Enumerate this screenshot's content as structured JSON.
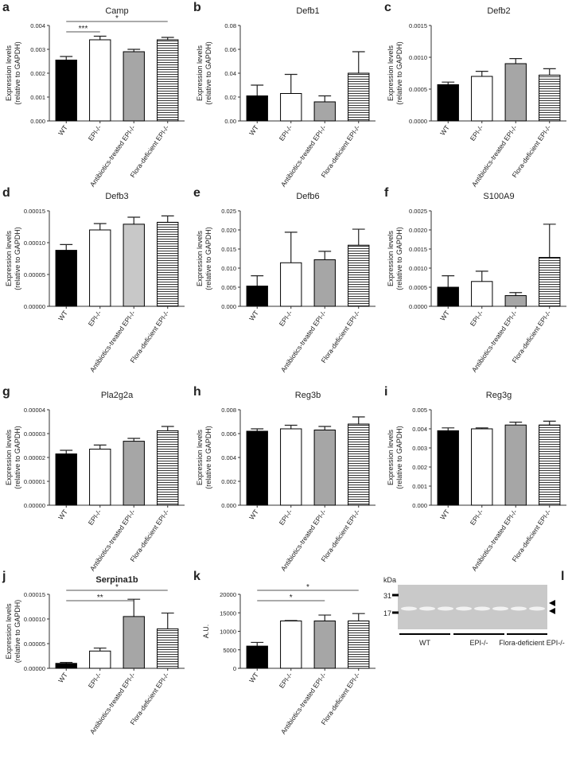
{
  "chart_data": [
    {
      "type": "bar",
      "panel": "a",
      "title": "Camp",
      "ylabel": [
        "Expression levels",
        "(relative to GAPDH)"
      ],
      "categories": [
        "WT",
        "EPI-/-",
        "Antibiotics-treated EPI-/-",
        "Flora-deficient EPI-/-"
      ],
      "values": [
        0.00255,
        0.0034,
        0.0029,
        0.0034
      ],
      "errors": [
        0.00015,
        0.00015,
        0.0001,
        0.0001
      ],
      "colors": [
        "#000000",
        "#ffffff",
        "#a6a6a6",
        "#ffffff"
      ],
      "patterns": [
        "solid",
        "solid",
        "solid",
        "horizontal-lines"
      ],
      "ylim": [
        0,
        0.004
      ],
      "yticks": [
        {
          "value": 0,
          "label": "0.000"
        },
        0.001,
        0.002,
        0.003,
        0.004
      ],
      "significance": [
        {
          "label": "***",
          "groups": [
            0,
            1
          ]
        },
        {
          "label": "*",
          "groups": [
            0,
            3
          ]
        }
      ]
    },
    {
      "type": "bar",
      "panel": "b",
      "title": "Defb1",
      "ylabel": [
        "Expression levels",
        "(relative to GAPDH)"
      ],
      "categories": [
        "WT",
        "EPI-/-",
        "Antibiotics-treated EPI-/-",
        "Flora-deficient EPI-/-"
      ],
      "values": [
        0.021,
        0.023,
        0.016,
        0.04
      ],
      "errors": [
        0.009,
        0.016,
        0.005,
        0.018
      ],
      "colors": [
        "#000000",
        "#ffffff",
        "#a6a6a6",
        "#ffffff"
      ],
      "patterns": [
        "solid",
        "solid",
        "solid",
        "horizontal-lines"
      ],
      "ylim": [
        0,
        0.08
      ],
      "yticks": [
        {
          "value": 0,
          "label": "0.00"
        },
        0.02,
        0.04,
        0.06,
        0.08
      ]
    },
    {
      "type": "bar",
      "panel": "c",
      "title": "Defb2",
      "ylabel": [
        "Expression levels",
        "(relative to GAPDH)"
      ],
      "categories": [
        "WT",
        "EPI-/-",
        "Antibiotics-treated EPI-/-",
        "Flora-deficient EPI-/-"
      ],
      "values": [
        0.00057,
        0.0007,
        0.0009,
        0.00072
      ],
      "errors": [
        4e-05,
        8e-05,
        8e-05,
        0.0001
      ],
      "colors": [
        "#000000",
        "#ffffff",
        "#a6a6a6",
        "#ffffff"
      ],
      "patterns": [
        "solid",
        "solid",
        "solid",
        "horizontal-lines"
      ],
      "ylim": [
        0,
        0.0015
      ],
      "yticks": [
        {
          "value": 0,
          "label": "0.0000"
        },
        0.0005,
        {
          "value": 0.001,
          "label": "0.0010"
        },
        0.0015
      ]
    },
    {
      "type": "bar",
      "panel": "d",
      "title": "Defb3",
      "ylabel": [
        "Expression levels",
        "(relative to GAPDH)"
      ],
      "categories": [
        "WT",
        "EPI-/-",
        "Antibiotics-treated EPI-/-",
        "Flora-deficient EPI-/-"
      ],
      "values": [
        8.8e-05,
        0.00012,
        0.000129,
        0.000132
      ],
      "errors": [
        9e-06,
        1e-05,
        1.1e-05,
        1e-05
      ],
      "colors": [
        "#000000",
        "#ffffff",
        "#c8c8c8",
        "#ffffff"
      ],
      "patterns": [
        "solid",
        "solid",
        "solid",
        "horizontal-lines"
      ],
      "ylim": [
        0,
        0.00015
      ],
      "yticks": [
        {
          "value": 0,
          "label": "0.00000"
        },
        5e-05,
        {
          "value": 0.0001,
          "label": "0.00010"
        },
        0.00015
      ]
    },
    {
      "type": "bar",
      "panel": "e",
      "title": "Defb6",
      "ylabel": [
        "Expression levels",
        "(relative to GAPDH)"
      ],
      "categories": [
        "WT",
        "EPI-/-",
        "Antibiotics-treated EPI-/-",
        "Flora-deficient EPI-/-"
      ],
      "values": [
        0.0053,
        0.0114,
        0.0122,
        0.016
      ],
      "errors": [
        0.0027,
        0.008,
        0.0022,
        0.0042
      ],
      "colors": [
        "#000000",
        "#ffffff",
        "#a6a6a6",
        "#ffffff"
      ],
      "patterns": [
        "solid",
        "solid",
        "solid",
        "horizontal-lines"
      ],
      "ylim": [
        0,
        0.025
      ],
      "yticks": [
        {
          "value": 0,
          "label": "0.000"
        },
        0.005,
        {
          "value": 0.01,
          "label": "0.010"
        },
        0.015,
        {
          "value": 0.02,
          "label": "0.020"
        },
        0.025
      ]
    },
    {
      "type": "bar",
      "panel": "f",
      "title": "S100A9",
      "ylabel": [
        "Expression levels",
        "(relative to GAPDH)"
      ],
      "categories": [
        "WT",
        "EPI-/-",
        "Antibiotics-treated EPI-/-",
        "Flora-deficient EPI-/-"
      ],
      "values": [
        0.0005,
        0.00065,
        0.00028,
        0.00128
      ],
      "errors": [
        0.0003,
        0.00027,
        8e-05,
        0.00087
      ],
      "colors": [
        "#000000",
        "#ffffff",
        "#a6a6a6",
        "#ffffff"
      ],
      "patterns": [
        "solid",
        "solid",
        "solid",
        "horizontal-lines"
      ],
      "ylim": [
        0,
        0.0025
      ],
      "yticks": [
        {
          "value": 0,
          "label": "0.0000"
        },
        0.0005,
        {
          "value": 0.001,
          "label": "0.0010"
        },
        0.0015,
        {
          "value": 0.002,
          "label": "0.0020"
        },
        0.0025
      ]
    },
    {
      "type": "bar",
      "panel": "g",
      "title": "Pla2g2a",
      "ylabel": [
        "Expression levels",
        "(relative to GAPDH)"
      ],
      "categories": [
        "WT",
        "EPI-/-",
        "Antibiotics-treated EPI-/-",
        "Flora-deficient EPI-/-"
      ],
      "values": [
        2.15e-05,
        2.35e-05,
        2.68e-05,
        3.12e-05
      ],
      "errors": [
        1.5e-06,
        1.7e-06,
        1.2e-06,
        1.8e-06
      ],
      "colors": [
        "#000000",
        "#ffffff",
        "#a6a6a6",
        "#ffffff"
      ],
      "patterns": [
        "solid",
        "solid",
        "solid",
        "horizontal-lines"
      ],
      "ylim": [
        0,
        4e-05
      ],
      "yticks": [
        {
          "value": 0,
          "label": "0.00000"
        },
        {
          "value": 1e-05,
          "label": "0.00001"
        },
        {
          "value": 2e-05,
          "label": "0.00002"
        },
        {
          "value": 3e-05,
          "label": "0.00003"
        },
        {
          "value": 4e-05,
          "label": "0.00004"
        }
      ]
    },
    {
      "type": "bar",
      "panel": "h",
      "title": "Reg3b",
      "ylabel": [
        "Expression levels",
        "(relative to GAPDH)"
      ],
      "categories": [
        "WT",
        "EPI-/-",
        "Antibiotics-treated EPI-/-",
        "Flora-deficient EPI-/-"
      ],
      "values": [
        0.0062,
        0.0064,
        0.0063,
        0.0068
      ],
      "errors": [
        0.0002,
        0.0003,
        0.0003,
        0.0006
      ],
      "colors": [
        "#000000",
        "#ffffff",
        "#a6a6a6",
        "#ffffff"
      ],
      "patterns": [
        "solid",
        "solid",
        "solid",
        "horizontal-lines"
      ],
      "ylim": [
        0,
        0.008
      ],
      "yticks": [
        {
          "value": 0,
          "label": "0.000"
        },
        0.002,
        0.004,
        0.006,
        0.008
      ]
    },
    {
      "type": "bar",
      "panel": "i",
      "title": "Reg3g",
      "ylabel": [
        "Expression levels",
        "(relative to GAPDH)"
      ],
      "categories": [
        "WT",
        "EPI-/-",
        "Antibiotics-treated EPI-/-",
        "Flora-deficient EPI-/-"
      ],
      "values": [
        0.0039,
        0.004,
        0.0042,
        0.0042
      ],
      "errors": [
        0.00015,
        5e-05,
        0.00015,
        0.0002
      ],
      "colors": [
        "#000000",
        "#ffffff",
        "#a6a6a6",
        "#ffffff"
      ],
      "patterns": [
        "solid",
        "solid",
        "solid",
        "horizontal-lines"
      ],
      "ylim": [
        0,
        0.005
      ],
      "yticks": [
        {
          "value": 0,
          "label": "0.000"
        },
        0.001,
        0.002,
        0.003,
        0.004,
        0.005
      ]
    },
    {
      "type": "bar",
      "panel": "j",
      "title": "Serpina1b",
      "ylabel": [
        "Expression levels",
        "(relative to GAPDH)"
      ],
      "categories": [
        "WT",
        "EPI-/-",
        "Antibiotics-treated EPI-/-",
        "Flora-deficient EPI-/-"
      ],
      "values": [
        1e-05,
        3.5e-05,
        0.000105,
        8e-05
      ],
      "errors": [
        2e-06,
        6e-06,
        3.5e-05,
        3.2e-05
      ],
      "colors": [
        "#000000",
        "#ffffff",
        "#a6a6a6",
        "#ffffff"
      ],
      "patterns": [
        "solid",
        "solid",
        "solid",
        "horizontal-lines"
      ],
      "ylim": [
        0,
        0.00015
      ],
      "yticks": [
        {
          "value": 0,
          "label": "0.00000"
        },
        5e-05,
        {
          "value": 0.0001,
          "label": "0.00010"
        },
        0.00015
      ],
      "significance": [
        {
          "label": "**",
          "groups": [
            0,
            2
          ]
        },
        {
          "label": "*",
          "groups": [
            0,
            3
          ]
        }
      ]
    },
    {
      "type": "bar",
      "panel": "k",
      "ylabel": [
        "A.U."
      ],
      "categories": [
        "WT",
        "EPI-/-",
        "Antibiotics-treated EPI-/-",
        "Flora-deficient EPI-/-"
      ],
      "values": [
        6000,
        12800,
        12800,
        12800
      ],
      "errors": [
        1000,
        100,
        1600,
        2000
      ],
      "colors": [
        "#000000",
        "#ffffff",
        "#a6a6a6",
        "#ffffff"
      ],
      "patterns": [
        "solid",
        "solid",
        "solid",
        "horizontal-lines"
      ],
      "ylim": [
        0,
        20000
      ],
      "yticks": [
        0,
        5000,
        10000,
        15000,
        20000
      ],
      "significance": [
        {
          "label": "*",
          "groups": [
            0,
            2
          ]
        },
        {
          "label": "*",
          "groups": [
            0,
            3
          ]
        }
      ]
    }
  ],
  "blot": {
    "panel": "l",
    "unit": "kDa",
    "markers": [
      31,
      17
    ],
    "lanes": [
      "WT",
      "EPI-/-",
      "Flora-deficient EPI-/-"
    ]
  }
}
